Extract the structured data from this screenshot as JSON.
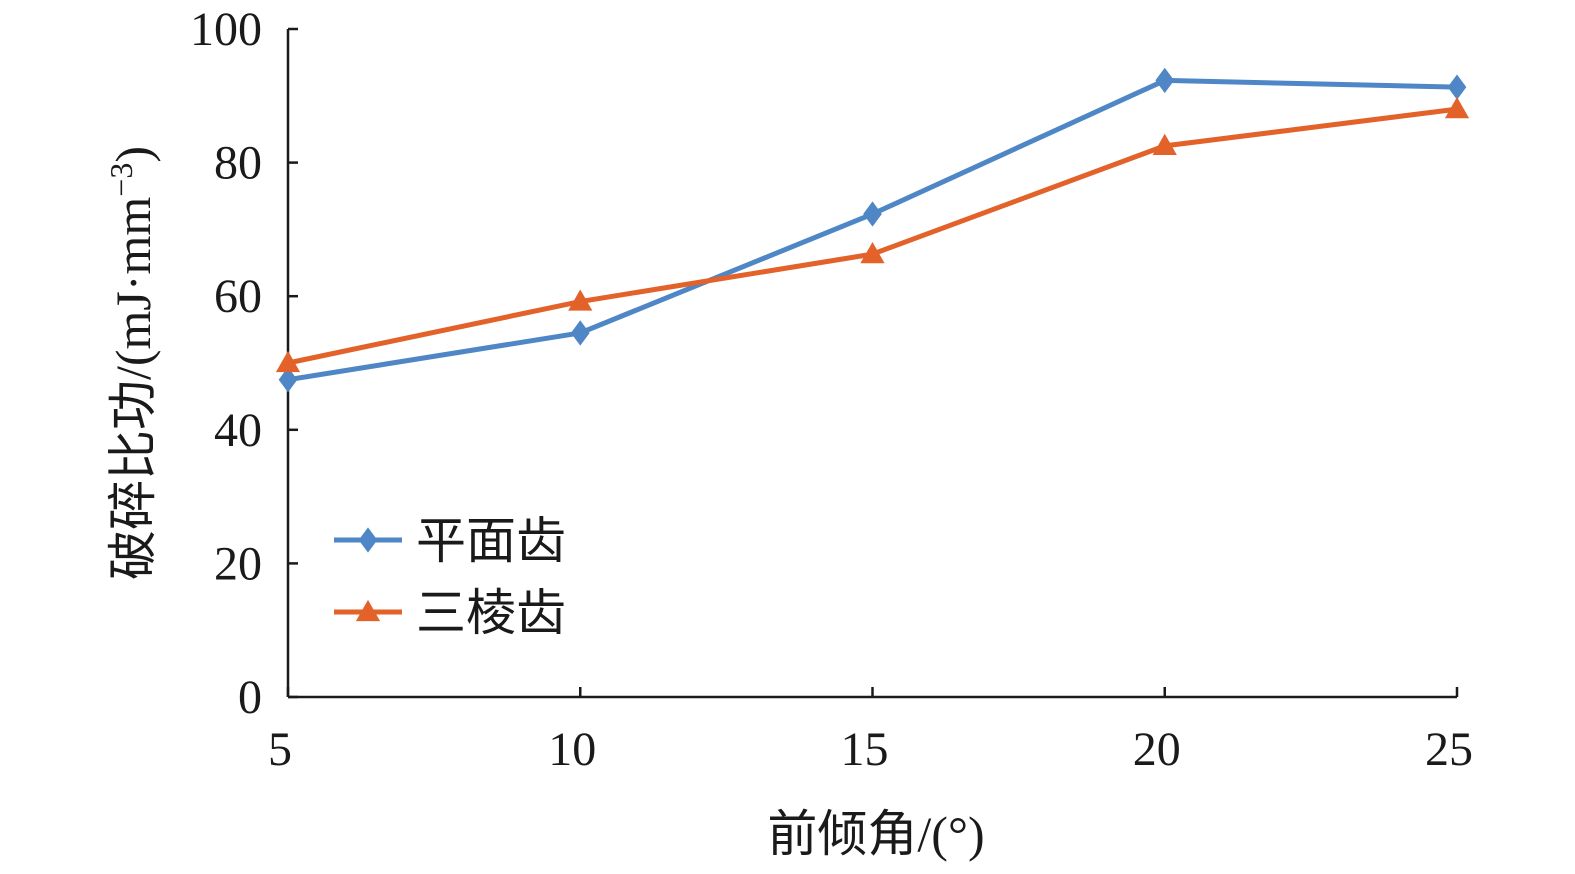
{
  "chart_data": {
    "type": "line",
    "x": [
      5,
      10,
      15,
      20,
      25
    ],
    "xlabel": "前倾角/(°)",
    "ylabel": "破碎比功/(mJ·mm",
    "ylabel_sup": "−3",
    "ylabel_end": ")",
    "xlim": [
      5,
      25
    ],
    "ylim": [
      0,
      100
    ],
    "xticks": [
      "5",
      "10",
      "15",
      "20",
      "25"
    ],
    "yticks": [
      "0",
      "20",
      "40",
      "60",
      "80",
      "100"
    ],
    "grid": false,
    "legend_position": "lower-left",
    "series": [
      {
        "name": "平面齿",
        "marker": "diamond",
        "color": "#4f86c6",
        "values": [
          47.5,
          54.5,
          72.3,
          92.3,
          91.3
        ]
      },
      {
        "name": "三棱齿",
        "marker": "triangle",
        "color": "#e2622a",
        "values": [
          50.0,
          59.2,
          66.3,
          82.5,
          88.0
        ]
      }
    ]
  }
}
